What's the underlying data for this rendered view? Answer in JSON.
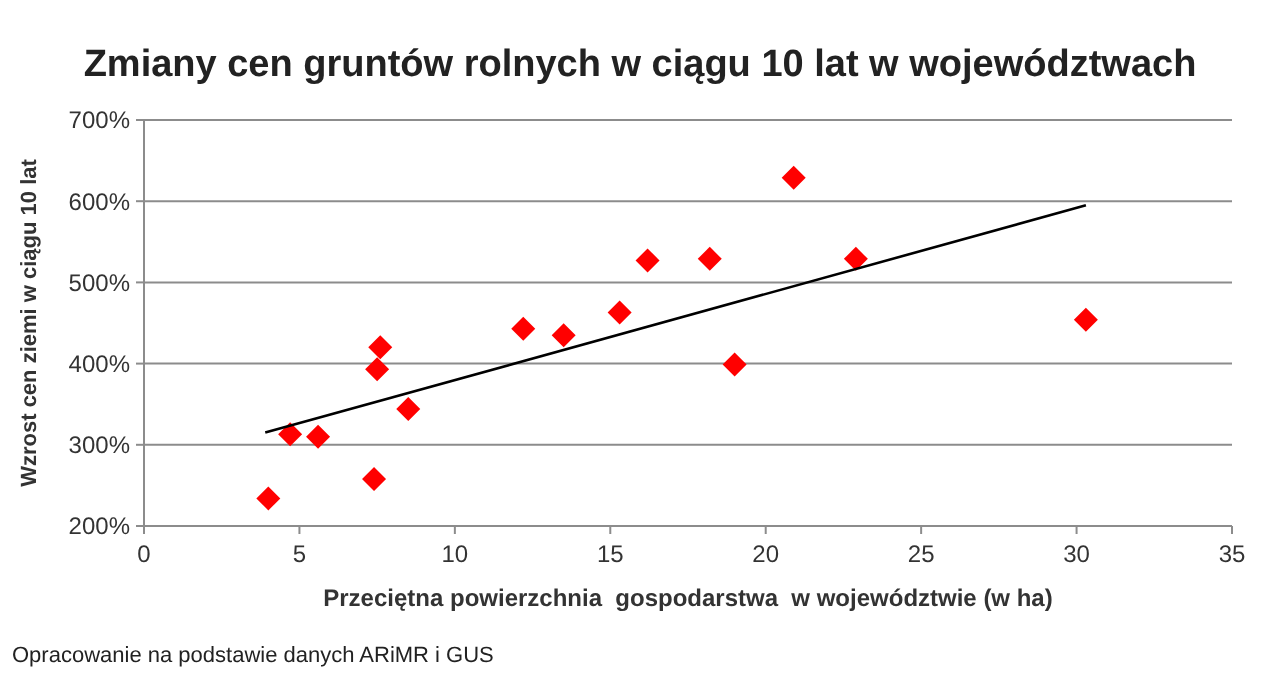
{
  "chart_data": {
    "type": "scatter",
    "title": "Zmiany cen gruntów rolnych w ciągu 10 lat w województwach",
    "xlabel": "Przeciętna powierzchnia  gospodarstwa  w województwie (w ha)",
    "ylabel": "Wzrost cen ziemi w ciągu 10 lat",
    "annotations": [
      "Opracowanie na podstawie danych ARiMR i GUS"
    ],
    "xlim": [
      0,
      35
    ],
    "xticks": [
      0,
      5,
      10,
      15,
      20,
      25,
      30,
      35
    ],
    "ylim": [
      200,
      700
    ],
    "yticks": [
      {
        "value": 200,
        "label": "200%"
      },
      {
        "value": 300,
        "label": "300%"
      },
      {
        "value": 400,
        "label": "400%"
      },
      {
        "value": 500,
        "label": "500%"
      },
      {
        "value": 600,
        "label": "600%"
      },
      {
        "value": 700,
        "label": "700%"
      }
    ],
    "grid": "y",
    "marker": "diamond",
    "series": [
      {
        "color": "#ff0000",
        "x": [
          4,
          4.7,
          5.6,
          7.4,
          7.5,
          7.6,
          8.5,
          12.2,
          13.5,
          15.3,
          16.2,
          18.2,
          19,
          20.9,
          22.9,
          30.3
        ],
        "values": [
          234,
          313,
          310,
          258,
          393,
          420,
          344,
          443,
          435,
          463,
          527,
          529,
          399,
          629,
          529,
          454
        ]
      },
      {
        "type": "line",
        "color": "#000000",
        "marker": "none",
        "line_style": "solid",
        "x": [
          3.9,
          30.3
        ],
        "values": [
          315,
          595
        ]
      }
    ]
  }
}
